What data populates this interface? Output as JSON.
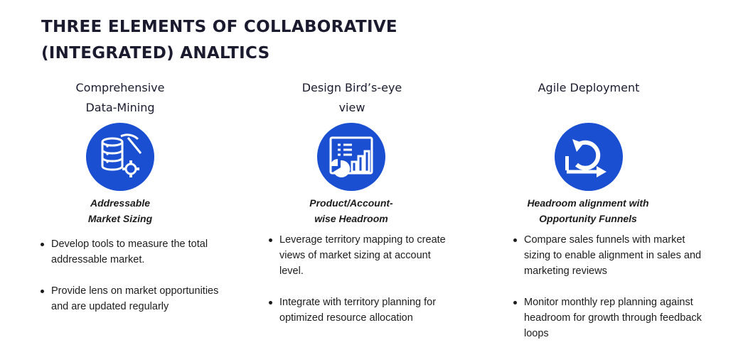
{
  "title": {
    "line1": "THREE ELEMENTS OF COLLABORATIVE",
    "line2": "(INTEGRATED) ANALTICS"
  },
  "columns": [
    {
      "heading": [
        "Comprehensive",
        "Data-Mining"
      ],
      "icon": "database-pickaxe-gear-icon",
      "subtitle": [
        "Addressable",
        "Market Sizing"
      ],
      "bullets": [
        "Develop tools to measure the total addressable market.",
        "Provide lens on market opportunities and are updated regularly"
      ]
    },
    {
      "heading": [
        "Design Bird’s-eye",
        "view"
      ],
      "icon": "dashboard-report-icon",
      "subtitle": [
        "Product/Account-",
        "wise Headroom"
      ],
      "bullets": [
        "Leverage territory mapping to create views of market sizing at account level.",
        "Integrate with territory planning for optimized resource allocation"
      ]
    },
    {
      "heading": [
        "Agile Deployment"
      ],
      "icon": "agile-cycle-icon",
      "subtitle": [
        "Headroom alignment with",
        "Opportunity Funnels"
      ],
      "bullets": [
        "Compare sales funnels with market sizing to enable alignment in sales and marketing reviews",
        "Monitor monthly rep planning against headroom for growth through feedback loops"
      ]
    }
  ],
  "colors": {
    "icon_bg": "#1a4fd1",
    "title": "#1b1b2f",
    "text": "#1c1c1c"
  }
}
